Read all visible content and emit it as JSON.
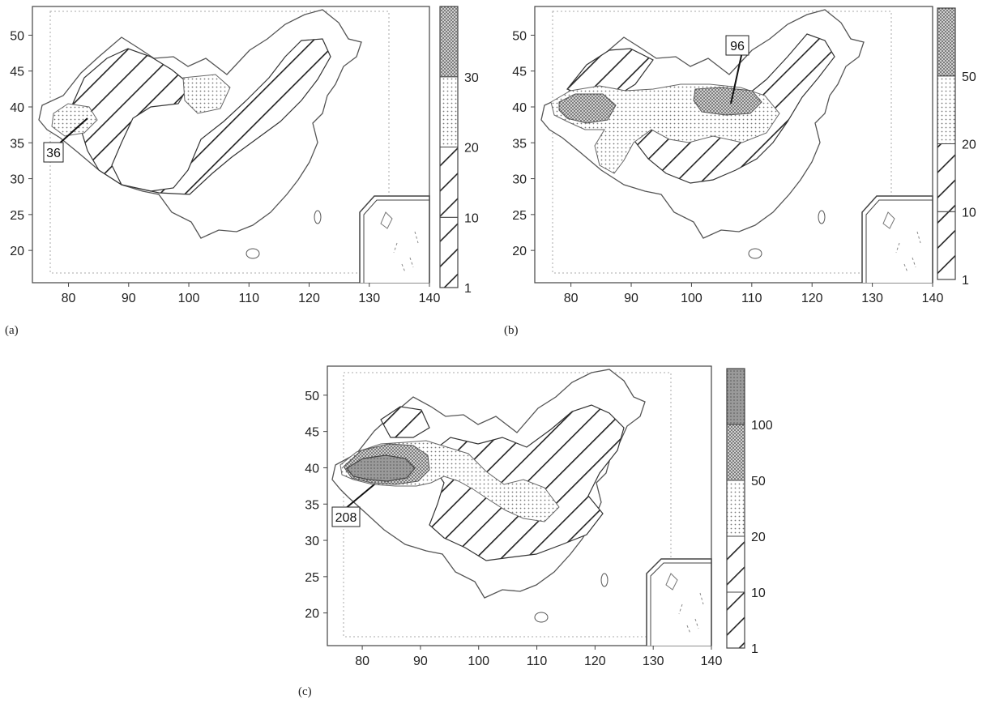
{
  "panels": [
    {
      "id": "a",
      "tag": "(a)",
      "x_ticks": [
        "80",
        "90",
        "100",
        "110",
        "120",
        "130",
        "140"
      ],
      "y_ticks": [
        "20",
        "25",
        "30",
        "35",
        "40",
        "45",
        "50"
      ],
      "legend_labels": [
        "1",
        "10",
        "20",
        "30"
      ],
      "legend_classes": [
        "hatch",
        "hatch",
        "dots",
        "dense"
      ],
      "callout": "36"
    },
    {
      "id": "b",
      "tag": "(b)",
      "x_ticks": [
        "80",
        "90",
        "100",
        "110",
        "120",
        "130",
        "140"
      ],
      "y_ticks": [
        "20",
        "25",
        "30",
        "35",
        "40",
        "45",
        "50"
      ],
      "legend_labels": [
        "1",
        "10",
        "20",
        "50"
      ],
      "legend_classes": [
        "hatch",
        "hatch",
        "dots",
        "dense"
      ],
      "callout": "96"
    },
    {
      "id": "c",
      "tag": "(c)",
      "x_ticks": [
        "80",
        "90",
        "100",
        "110",
        "120",
        "130",
        "140"
      ],
      "y_ticks": [
        "20",
        "25",
        "30",
        "35",
        "40",
        "45",
        "50"
      ],
      "legend_labels": [
        "1",
        "10",
        "20",
        "50",
        "100"
      ],
      "legend_classes": [
        "hatch",
        "hatch",
        "dots",
        "dense",
        "solid"
      ],
      "callout": "208"
    }
  ],
  "colors": {
    "frame": "#444444",
    "border": "#555555",
    "dotted": "#999999",
    "hatch": "#222222",
    "dots": "#888888",
    "dense": "#555555",
    "solid": "#777777"
  }
}
